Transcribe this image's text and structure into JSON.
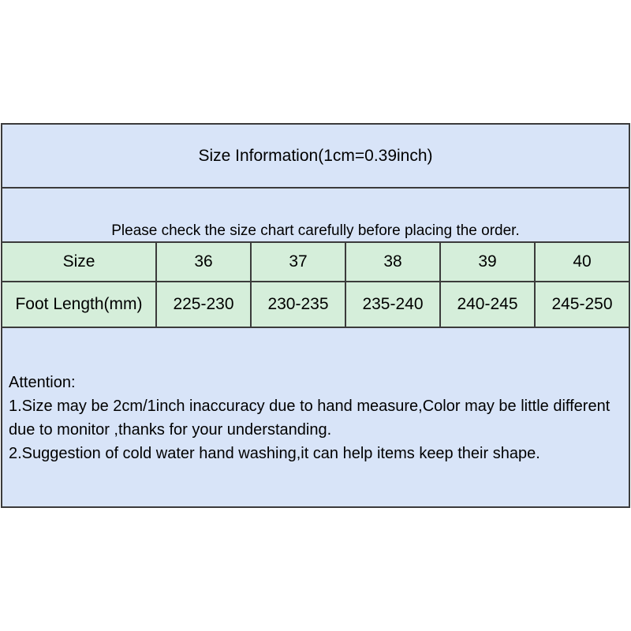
{
  "title_row": {
    "text": "Size Information(1cm=0.39inch)"
  },
  "notice_row": {
    "text": "Please check the size chart carefully before placing the order."
  },
  "size_table": {
    "size_row": [
      "Size",
      "36",
      "37",
      "38",
      "39",
      "40"
    ],
    "foot_row": [
      "Foot Length(mm)",
      "225-230",
      "230-235",
      "235-240",
      "240-245",
      "245-250"
    ]
  },
  "attention": {
    "heading": "Attention:",
    "line1": "1.Size may be 2cm/1inch inaccuracy due to hand measure,Color may be little different due to monitor ,thanks for your understanding.",
    "line2": "2.Suggestion of cold water hand washing,it can help items keep their shape."
  },
  "colors": {
    "blue": "#d8e4f8",
    "green": "#d5eeda",
    "border": "#3b3b3b"
  },
  "chart_data": {
    "type": "table",
    "title": "Size Information(1cm=0.39inch)",
    "columns": [
      "Size",
      "36",
      "37",
      "38",
      "39",
      "40"
    ],
    "rows": [
      [
        "Foot Length(mm)",
        "225-230",
        "230-235",
        "235-240",
        "240-245",
        "245-250"
      ]
    ]
  }
}
